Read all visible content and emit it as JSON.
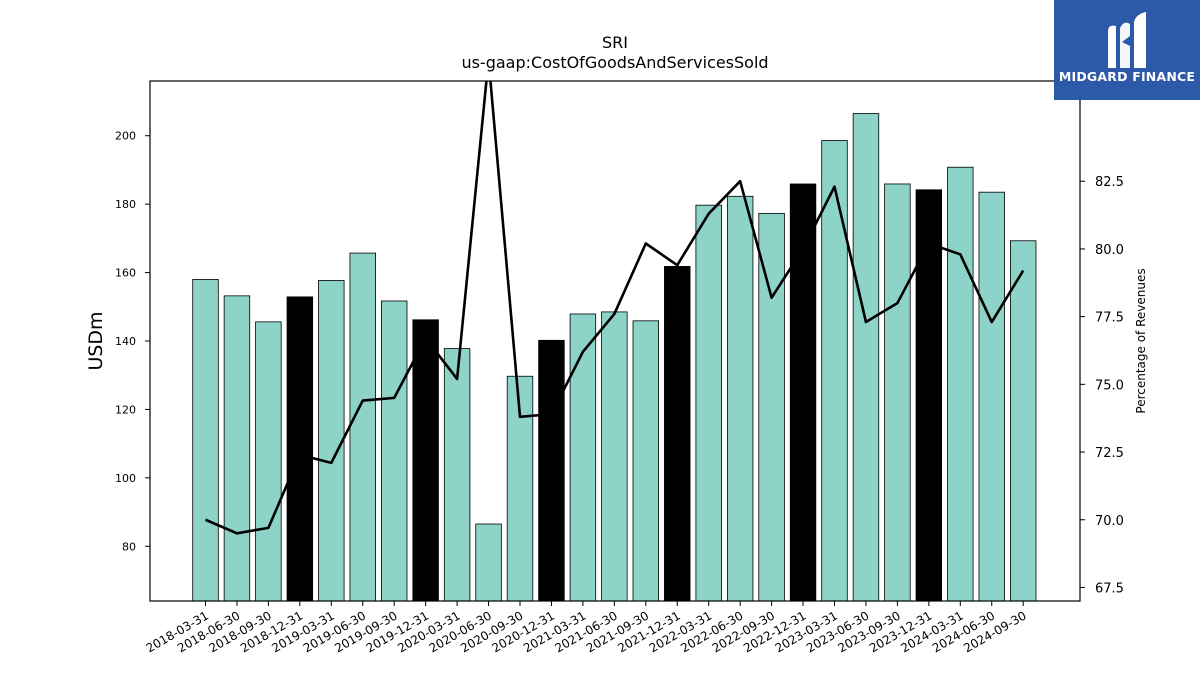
{
  "logo": {
    "text": "MIDGARD FINANCE",
    "background": "#2d5aa8"
  },
  "chart_data": {
    "type": "bar",
    "title": "SRI",
    "subtitle": "us-gaap:CostOfGoodsAndServicesSold",
    "ylabel": "USDm",
    "y2label": "Percentage of Revenues",
    "ylim": [
      64,
      216
    ],
    "y2lim": [
      67.0,
      86.2
    ],
    "yticks": [
      80,
      100,
      120,
      140,
      160,
      180,
      200
    ],
    "y2ticks": [
      "67.5",
      "70.0",
      "72.5",
      "75.0",
      "77.5",
      "80.0",
      "82.5"
    ],
    "categories": [
      "2018-03-31",
      "2018-06-30",
      "2018-09-30",
      "2018-12-31",
      "2019-03-31",
      "2019-06-30",
      "2019-09-30",
      "2019-12-31",
      "2020-03-31",
      "2020-06-30",
      "2020-09-30",
      "2020-12-31",
      "2021-03-31",
      "2021-06-30",
      "2021-09-30",
      "2021-12-31",
      "2022-03-31",
      "2022-06-30",
      "2022-09-30",
      "2022-12-31",
      "2023-03-31",
      "2023-06-30",
      "2023-09-30",
      "2023-12-31",
      "2024-03-31",
      "2024-06-30",
      "2024-09-30"
    ],
    "series": [
      {
        "values": [
          158.0,
          153.2,
          145.6,
          152.9,
          157.7,
          165.7,
          151.7,
          146.2,
          137.8,
          86.5,
          129.7,
          140.2,
          147.9,
          148.5,
          145.9,
          161.8,
          179.7,
          182.3,
          177.3,
          185.9,
          198.6,
          206.5,
          185.9,
          184.2,
          190.8,
          183.5,
          169.3
        ],
        "colors": [
          "#8dd3c7",
          "#8dd3c7",
          "#8dd3c7",
          "#000000",
          "#8dd3c7",
          "#8dd3c7",
          "#8dd3c7",
          "#000000",
          "#8dd3c7",
          "#8dd3c7",
          "#8dd3c7",
          "#000000",
          "#8dd3c7",
          "#8dd3c7",
          "#8dd3c7",
          "#000000",
          "#8dd3c7",
          "#8dd3c7",
          "#8dd3c7",
          "#000000",
          "#8dd3c7",
          "#8dd3c7",
          "#8dd3c7",
          "#000000",
          "#8dd3c7",
          "#8dd3c7",
          "#8dd3c7"
        ]
      },
      {
        "axis": "right",
        "type": "line",
        "color": "#000000",
        "values": [
          70.0,
          69.5,
          69.7,
          72.4,
          72.1,
          74.4,
          74.5,
          76.7,
          75.2,
          87.0,
          73.8,
          73.9,
          76.2,
          77.6,
          80.2,
          79.4,
          81.3,
          82.5,
          78.2,
          80.0,
          82.3,
          77.3,
          78.0,
          80.2,
          79.8,
          77.3,
          79.2
        ]
      }
    ],
    "grid": false,
    "legend": "none"
  }
}
